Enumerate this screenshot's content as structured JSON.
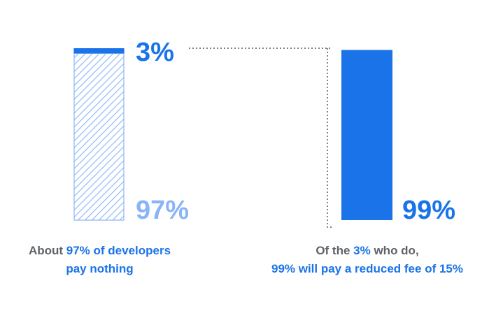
{
  "chart_data": [
    {
      "type": "bar",
      "stacked": true,
      "segments": [
        {
          "label": "97%",
          "value": 97,
          "style": "hatched",
          "color": "#8ab4f8"
        },
        {
          "label": "3%",
          "value": 3,
          "style": "solid",
          "color": "#1a73e8"
        }
      ],
      "ylim": [
        0,
        100
      ]
    },
    {
      "type": "bar",
      "segments": [
        {
          "label": "99%",
          "value": 99,
          "style": "solid",
          "color": "#1a73e8"
        }
      ],
      "ylim": [
        0,
        100
      ]
    }
  ],
  "captions": {
    "left": {
      "pre": "About ",
      "highlight": "97% of developers",
      "post": "pay nothing"
    },
    "right": {
      "pre": "Of the ",
      "highlight": "3%",
      "mid": " who do,",
      "post": "99% will pay a reduced fee of 15%"
    }
  },
  "colors": {
    "accent": "#1a73e8",
    "light": "#8ab4f8",
    "text_gray": "#5f6368",
    "connector": "#333333"
  }
}
